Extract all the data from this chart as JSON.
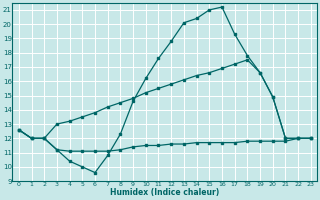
{
  "background_color": "#c8e8e8",
  "grid_color": "#ffffff",
  "line_color": "#006666",
  "xlim": [
    -0.5,
    23.5
  ],
  "ylim": [
    9,
    21.5
  ],
  "yticks": [
    9,
    10,
    11,
    12,
    13,
    14,
    15,
    16,
    17,
    18,
    19,
    20,
    21
  ],
  "xticks": [
    0,
    1,
    2,
    3,
    4,
    5,
    6,
    7,
    8,
    9,
    10,
    11,
    12,
    13,
    14,
    15,
    16,
    17,
    18,
    19,
    20,
    21,
    22,
    23
  ],
  "xlabel": "Humidex (Indice chaleur)",
  "line1_x": [
    0,
    1,
    2,
    3,
    4,
    5,
    6,
    7,
    8,
    9,
    10,
    11,
    12,
    13,
    14,
    15,
    16,
    17,
    18,
    19,
    20,
    21,
    22,
    23
  ],
  "line1_y": [
    12.6,
    12.0,
    12.0,
    11.2,
    10.4,
    10.0,
    9.6,
    10.8,
    12.3,
    14.6,
    16.2,
    17.6,
    18.8,
    20.1,
    20.4,
    21.0,
    21.2,
    19.3,
    17.8,
    16.6,
    14.9,
    12.0,
    12.0,
    12.0
  ],
  "line2_x": [
    0,
    1,
    2,
    3,
    4,
    5,
    6,
    7,
    8,
    9,
    10,
    11,
    12,
    13,
    14,
    15,
    16,
    17,
    18,
    19,
    20,
    21,
    22,
    23
  ],
  "line2_y": [
    12.6,
    12.0,
    12.0,
    11.2,
    11.1,
    11.1,
    11.1,
    11.1,
    11.2,
    11.4,
    11.5,
    11.5,
    11.6,
    11.6,
    11.7,
    11.7,
    11.7,
    11.7,
    11.8,
    11.8,
    11.8,
    11.8,
    12.0,
    12.0
  ],
  "line3_x": [
    0,
    1,
    2,
    3,
    4,
    5,
    6,
    7,
    8,
    9,
    10,
    11,
    12,
    13,
    14,
    15,
    16,
    17,
    18,
    19,
    20,
    21,
    22,
    23
  ],
  "line3_y": [
    12.6,
    12.0,
    12.0,
    13.0,
    13.2,
    13.5,
    13.8,
    14.2,
    14.5,
    14.8,
    15.2,
    15.5,
    15.8,
    16.1,
    16.4,
    16.6,
    16.9,
    17.2,
    17.5,
    16.6,
    14.9,
    12.0,
    12.0,
    12.0
  ]
}
